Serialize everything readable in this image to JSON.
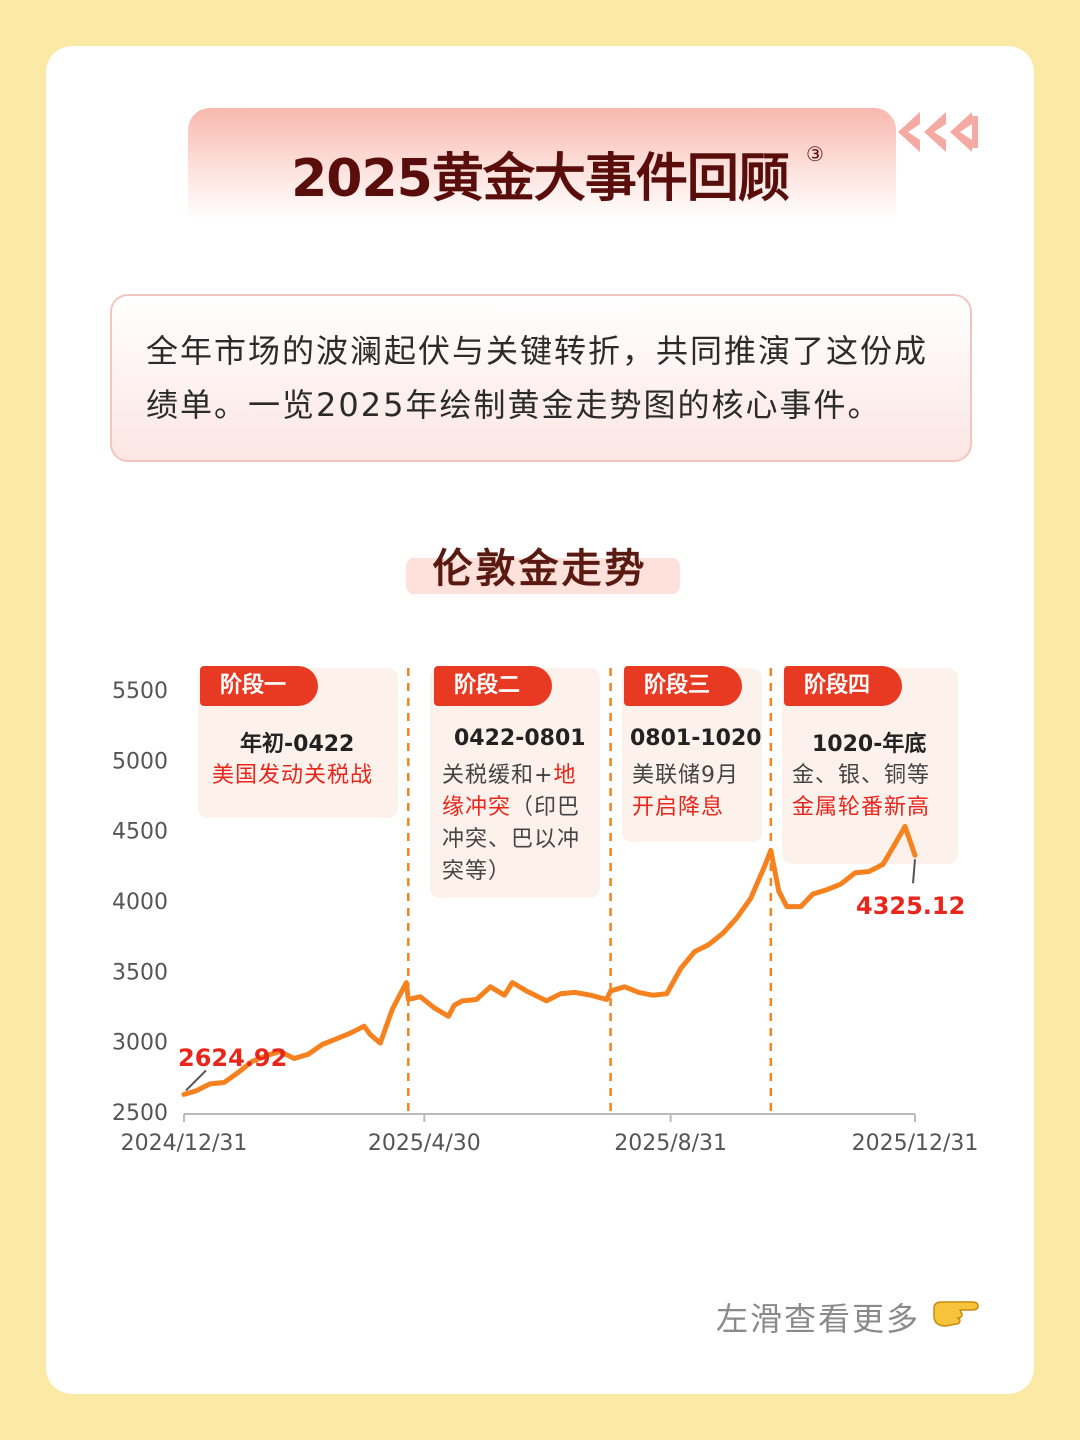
{
  "header": {
    "title": "2025黄金大事件回顾",
    "superscript": "③"
  },
  "intro": {
    "text": "全年市场的波澜起伏与关键转折，共同推演了这份成绩单。一览2025年绘制黄金走势图的核心事件。"
  },
  "section_title": "伦敦金走势",
  "phases": [
    {
      "tag": "阶段一",
      "range": "年初-0422",
      "desc_plain": "",
      "desc_red": "美国发动关税战"
    },
    {
      "tag": "阶段二",
      "range": "0422-0801",
      "desc_plain": "关税缓和+",
      "desc_red": "地缘冲突",
      "desc_tail": "（印巴冲突、巴以冲突等）"
    },
    {
      "tag": "阶段三",
      "range": "0801-1020",
      "desc_plain": "美联储9月",
      "desc_red": "开启降息"
    },
    {
      "tag": "阶段四",
      "range": "1020-年底",
      "desc_plain": "金、银、铜等",
      "desc_red": "金属轮番新高"
    }
  ],
  "footer": {
    "text": "左滑查看更多"
  },
  "colors": {
    "line": "#f5821f",
    "accent_red": "#e8261c",
    "title": "#5a0e0b"
  },
  "chart_data": {
    "type": "line",
    "title": "伦敦金走势",
    "xlabel": "",
    "ylabel": "",
    "ylim": [
      2500,
      5500
    ],
    "yticks": [
      2500,
      3000,
      3500,
      4000,
      4500,
      5000,
      5500
    ],
    "xticks": [
      "2024/12/31",
      "2025/4/30",
      "2025/8/31",
      "2025/12/31"
    ],
    "phase_dividers": [
      "2025-04-22",
      "2025-08-01",
      "2025-10-20"
    ],
    "start_label": "2624.92",
    "end_label": "4325.12",
    "x": [
      "2024-12-31",
      "2025-01-06",
      "2025-01-13",
      "2025-01-20",
      "2025-01-27",
      "2025-02-03",
      "2025-02-10",
      "2025-02-17",
      "2025-02-24",
      "2025-03-03",
      "2025-03-10",
      "2025-03-17",
      "2025-03-24",
      "2025-03-31",
      "2025-04-03",
      "2025-04-08",
      "2025-04-14",
      "2025-04-21",
      "2025-04-22",
      "2025-04-28",
      "2025-05-05",
      "2025-05-12",
      "2025-05-15",
      "2025-05-19",
      "2025-05-26",
      "2025-06-02",
      "2025-06-09",
      "2025-06-13",
      "2025-06-20",
      "2025-06-30",
      "2025-07-07",
      "2025-07-14",
      "2025-07-22",
      "2025-07-30",
      "2025-08-01",
      "2025-08-08",
      "2025-08-15",
      "2025-08-22",
      "2025-08-29",
      "2025-09-05",
      "2025-09-12",
      "2025-09-19",
      "2025-09-26",
      "2025-10-03",
      "2025-10-10",
      "2025-10-17",
      "2025-10-20",
      "2025-10-24",
      "2025-10-28",
      "2025-11-04",
      "2025-11-10",
      "2025-11-17",
      "2025-11-24",
      "2025-12-01",
      "2025-12-08",
      "2025-12-15",
      "2025-12-22",
      "2025-12-26",
      "2025-12-31"
    ],
    "series": [
      {
        "values": [
          2624.92,
          2650,
          2700,
          2710,
          2780,
          2860,
          2900,
          2930,
          2880,
          2910,
          2980,
          3020,
          3060,
          3110,
          3050,
          2990,
          3230,
          3420,
          3300,
          3320,
          3240,
          3180,
          3260,
          3290,
          3300,
          3390,
          3330,
          3420,
          3360,
          3290,
          3340,
          3350,
          3330,
          3300,
          3360,
          3390,
          3350,
          3330,
          3340,
          3520,
          3640,
          3690,
          3770,
          3880,
          4020,
          4250,
          4360,
          4070,
          3960,
          3960,
          4050,
          4080,
          4120,
          4200,
          4210,
          4260,
          4430,
          4530,
          4325.12
        ]
      }
    ]
  }
}
